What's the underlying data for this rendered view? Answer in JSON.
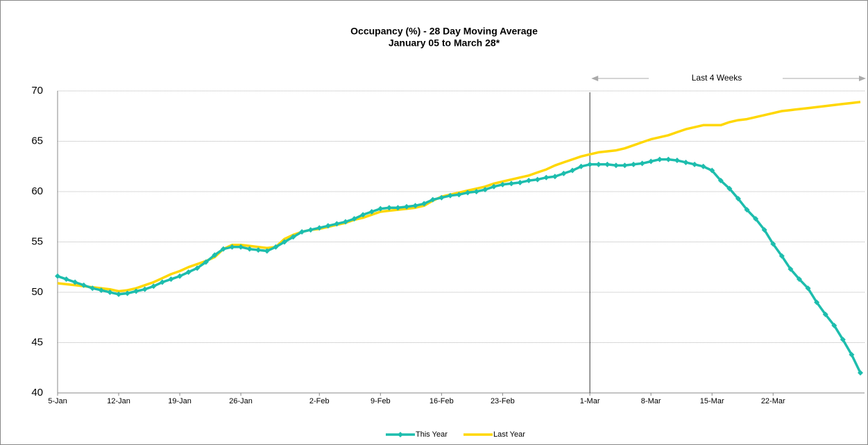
{
  "chart_data": {
    "type": "line",
    "title": "Occupancy (%) - 28 Day Moving Average",
    "subtitle": "January 05 to March 28*",
    "categories": [
      "5-Jan",
      null,
      null,
      null,
      null,
      null,
      null,
      "12-Jan",
      null,
      null,
      null,
      null,
      null,
      null,
      "19-Jan",
      null,
      null,
      null,
      null,
      null,
      null,
      "26-Jan",
      null,
      null,
      null,
      null,
      null,
      null,
      null,
      null,
      "2-Feb",
      null,
      null,
      null,
      null,
      null,
      null,
      "9-Feb",
      null,
      null,
      null,
      null,
      null,
      null,
      "16-Feb",
      null,
      null,
      null,
      null,
      null,
      null,
      "23-Feb",
      null,
      null,
      null,
      null,
      null,
      null,
      null,
      null,
      null,
      "1-Mar",
      null,
      null,
      null,
      null,
      null,
      null,
      "8-Mar",
      null,
      null,
      null,
      null,
      null,
      null,
      "15-Mar",
      null,
      null,
      null,
      null,
      null,
      null,
      "22-Mar",
      null,
      null,
      null,
      null,
      null,
      null,
      null,
      null,
      null,
      null
    ],
    "series": [
      {
        "name": "This Year",
        "color": "#1dbdad",
        "marker": true,
        "values": [
          51.6,
          51.3,
          51.0,
          50.7,
          50.4,
          50.2,
          50.0,
          49.8,
          49.9,
          50.1,
          50.3,
          50.6,
          51.0,
          51.3,
          51.6,
          52.0,
          52.4,
          53.0,
          53.7,
          54.3,
          54.5,
          54.5,
          54.3,
          54.2,
          54.1,
          54.5,
          55.0,
          55.5,
          56.0,
          56.2,
          56.4,
          56.6,
          56.8,
          57.0,
          57.3,
          57.7,
          58.0,
          58.3,
          58.4,
          58.4,
          58.5,
          58.6,
          58.8,
          59.2,
          59.4,
          59.6,
          59.7,
          59.9,
          60.0,
          60.2,
          60.5,
          60.7,
          60.8,
          60.9,
          61.1,
          61.2,
          61.4,
          61.5,
          61.8,
          62.1,
          62.5,
          62.7,
          62.7,
          62.7,
          62.6,
          62.6,
          62.7,
          62.8,
          63.0,
          63.2,
          63.2,
          63.1,
          62.9,
          62.7,
          62.5,
          62.1,
          61.1,
          60.3,
          59.3,
          58.2,
          57.3,
          56.2,
          54.8,
          53.6,
          52.3,
          51.3,
          50.4,
          49.0,
          47.8,
          46.7,
          45.3,
          43.8,
          42.0
        ]
      },
      {
        "name": "Last Year",
        "color": "#ffd700",
        "marker": false,
        "values": [
          50.9,
          50.8,
          50.7,
          50.6,
          50.5,
          50.4,
          50.3,
          50.1,
          50.2,
          50.4,
          50.7,
          51.0,
          51.4,
          51.8,
          52.1,
          52.5,
          52.8,
          53.1,
          53.5,
          54.3,
          54.7,
          54.7,
          54.6,
          54.5,
          54.4,
          54.5,
          55.3,
          55.7,
          56.0,
          56.2,
          56.3,
          56.5,
          56.7,
          56.9,
          57.2,
          57.4,
          57.7,
          58.0,
          58.1,
          58.2,
          58.3,
          58.4,
          58.6,
          59.1,
          59.5,
          59.7,
          59.9,
          60.1,
          60.3,
          60.5,
          60.8,
          61.0,
          61.2,
          61.4,
          61.6,
          61.9,
          62.2,
          62.6,
          62.9,
          63.2,
          63.5,
          63.7,
          63.9,
          64.0,
          64.1,
          64.3,
          64.6,
          64.9,
          65.2,
          65.4,
          65.6,
          65.9,
          66.2,
          66.4,
          66.6,
          66.6,
          66.6,
          66.9,
          67.1,
          67.2,
          67.4,
          67.6,
          67.8,
          68.0,
          68.1,
          68.2,
          68.3,
          68.4,
          68.5,
          68.6,
          68.7,
          68.8,
          68.9
        ]
      }
    ],
    "ylim": [
      40,
      70
    ],
    "yticks": [
      40,
      45,
      50,
      55,
      60,
      65,
      70
    ],
    "grid": true,
    "legend": "bottom",
    "annotation": {
      "text": "Last 4 Weeks",
      "start": "1-Mar"
    }
  }
}
